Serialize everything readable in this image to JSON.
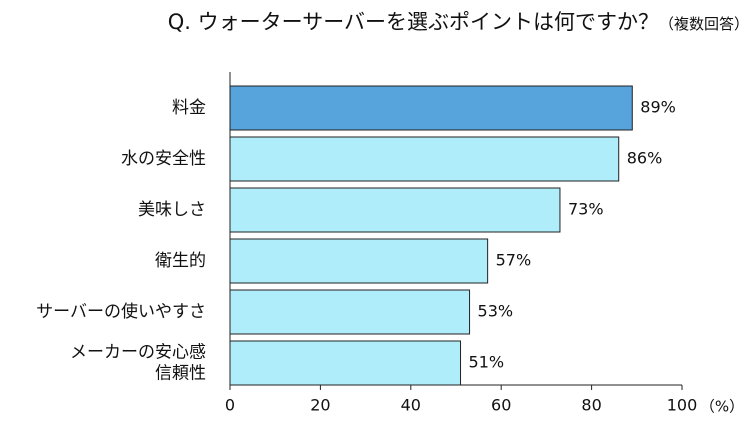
{
  "chart_data": {
    "type": "bar",
    "orientation": "horizontal",
    "title": "Q. ウォーターサーバーを選ぶポイントは何ですか？",
    "subtitle": "（複数回答）",
    "categories": [
      [
        "料金"
      ],
      [
        "水の安全性"
      ],
      [
        "美味しさ"
      ],
      [
        "衛生的"
      ],
      [
        "サーバーの使いやすさ"
      ],
      [
        "メーカーの安心感",
        "信頼性"
      ]
    ],
    "values": [
      89,
      86,
      73,
      57,
      53,
      51
    ],
    "value_labels": [
      "89%",
      "86%",
      "73%",
      "57%",
      "53%",
      "51%"
    ],
    "xlim": [
      0,
      100
    ],
    "xticks": [
      0,
      20,
      40,
      60,
      80,
      100
    ],
    "x_unit": "（%）",
    "highlight_index": 0,
    "colors": {
      "highlight": "#57a3dc",
      "bar": "#b0edfa",
      "border": "#222222"
    },
    "grid": false,
    "legend": "none"
  }
}
